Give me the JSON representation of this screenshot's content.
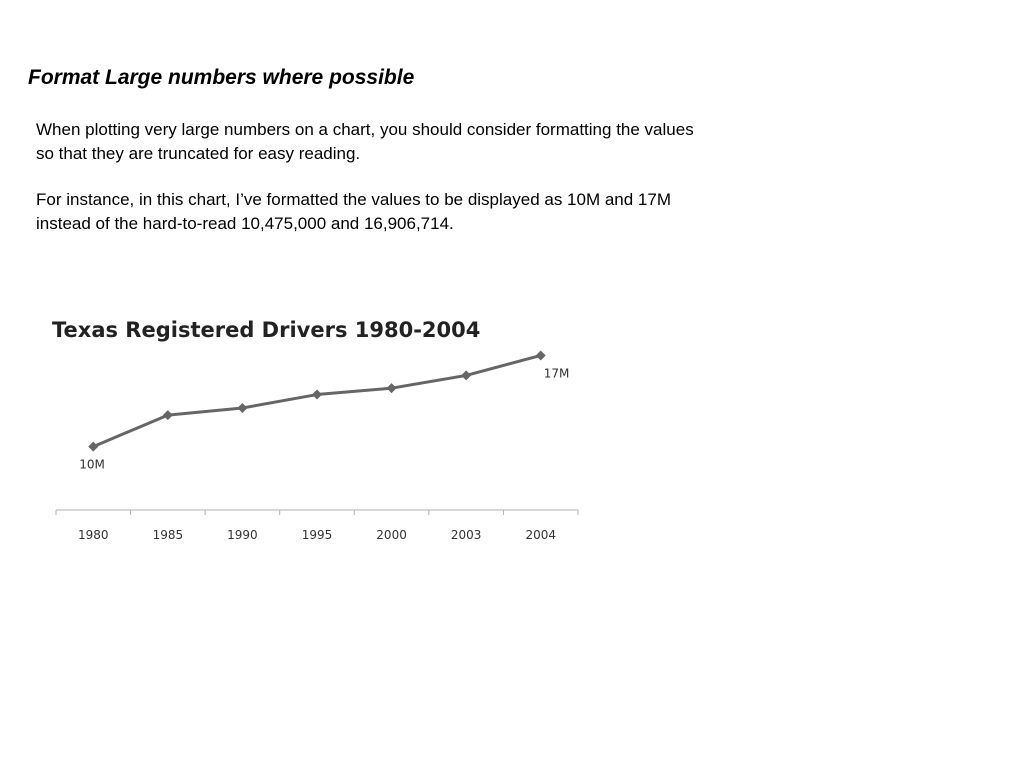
{
  "slide": {
    "title": "Format Large numbers where possible",
    "paragraph1": "When plotting very large numbers on a chart, you should consider formatting the values so that they are truncated for easy reading.",
    "paragraph2": "For instance, in this chart, I’ve formatted the values to be displayed as 10M and 17M instead of the hard-to-read 10,475,000 and 16,906,714."
  },
  "chart_data": {
    "type": "line",
    "title": "Texas Registered Drivers 1980-2004",
    "xlabel": "",
    "ylabel": "",
    "categories": [
      "1980",
      "1985",
      "1990",
      "1995",
      "2000",
      "2003",
      "2004"
    ],
    "series": [
      {
        "values": [
          10475000,
          12700000,
          13200000,
          14150000,
          14600000,
          15500000,
          16906714
        ]
      }
    ],
    "data_labels": [
      {
        "index": 0,
        "text": "10M"
      },
      {
        "index": 6,
        "text": "17M"
      }
    ],
    "ylim": [
      6000000,
      18000000
    ],
    "grid": false,
    "legend": "none",
    "line_color": "#666666",
    "axis_color": "#b0b0b0"
  }
}
